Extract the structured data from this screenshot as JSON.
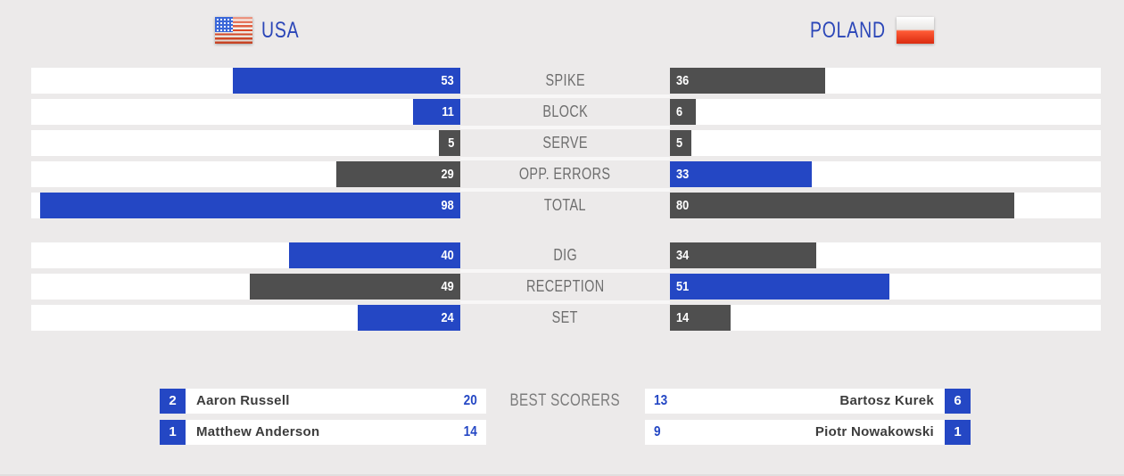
{
  "header": {
    "left_team": "USA",
    "right_team": "POLAND"
  },
  "colors": {
    "blue": "#2447C4",
    "dark_gray": "#4F4F4F",
    "background": "#ECEAEA",
    "track_white": "#FFFFFF",
    "stat_label_gray": "#6E6E6E",
    "header_blue": "#2B46B8",
    "scorer_name_text": "#3C3C3C"
  },
  "chart_data": {
    "type": "bar",
    "orientation": "horizontal, mirrored two-team comparison (USA bars grow right-to-left, Poland bars left-to-right)",
    "max_value": 100,
    "series": [
      "USA",
      "POLAND"
    ],
    "color_rule": "team with higher value gets blue bar; lower or tied value gets dark gray bar",
    "groups": [
      {
        "rows": [
          {
            "label": "SPIKE",
            "usa": 53,
            "poland": 36
          },
          {
            "label": "BLOCK",
            "usa": 11,
            "poland": 6
          },
          {
            "label": "SERVE",
            "usa": 5,
            "poland": 5
          },
          {
            "label": "OPP. ERRORS",
            "usa": 29,
            "poland": 33
          },
          {
            "label": "TOTAL",
            "usa": 98,
            "poland": 80
          }
        ]
      },
      {
        "rows": [
          {
            "label": "DIG",
            "usa": 40,
            "poland": 34
          },
          {
            "label": "RECEPTION",
            "usa": 49,
            "poland": 51
          },
          {
            "label": "SET",
            "usa": 24,
            "poland": 14
          }
        ]
      }
    ]
  },
  "best_scorers": {
    "label": "BEST SCORERS",
    "usa": [
      {
        "jersey_number": "2",
        "name": "Aaron Russell",
        "points": "20"
      },
      {
        "jersey_number": "1",
        "name": "Matthew Anderson",
        "points": "14"
      }
    ],
    "poland": [
      {
        "jersey_number": "6",
        "name": "Bartosz Kurek",
        "points": "13"
      },
      {
        "jersey_number": "1",
        "name": "Piotr Nowakowski",
        "points": "9"
      }
    ]
  }
}
